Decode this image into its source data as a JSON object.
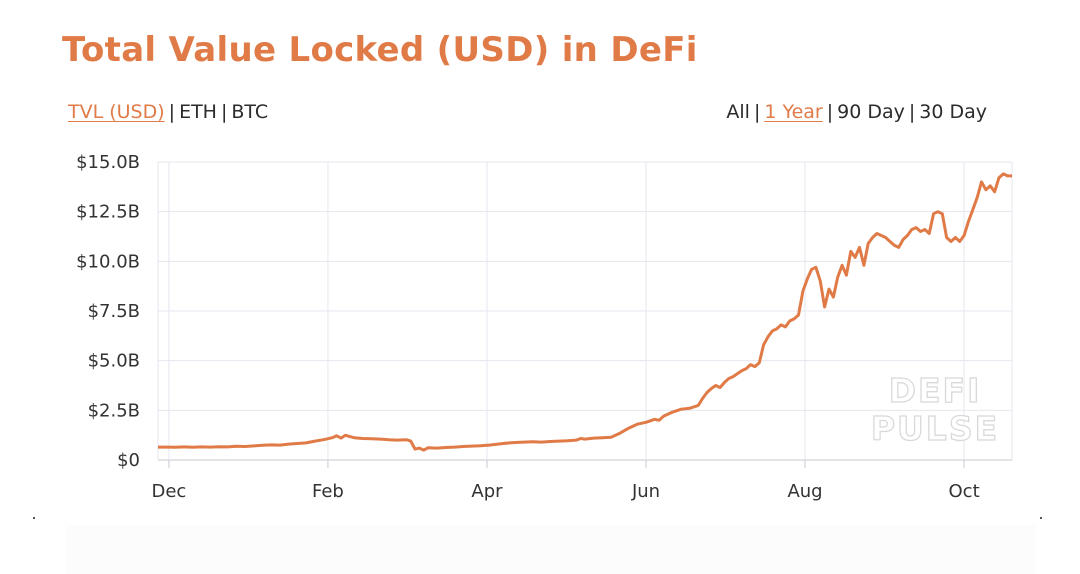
{
  "header": {
    "title": "Total Value Locked (USD) in DeFi"
  },
  "unit_toggle": {
    "options": [
      "TVL (USD)",
      "ETH",
      "BTC"
    ],
    "active": "TVL (USD)",
    "separator": "|"
  },
  "range_toggle": {
    "options": [
      "All",
      "1 Year",
      "90 Day",
      "30 Day"
    ],
    "active": "1 Year",
    "separator": "|"
  },
  "watermark": {
    "line1": "DEFI",
    "line2": "PULSE"
  },
  "colors": {
    "accent": "#e07b47",
    "line": "#e07b47",
    "grid": "#e6e6ef",
    "text": "#2b2b2b"
  },
  "chart_data": {
    "type": "line",
    "title": "Total Value Locked (USD) in DeFi",
    "xlabel": "",
    "ylabel": "",
    "x_tick_labels": [
      "Dec",
      "Feb",
      "Apr",
      "Jun",
      "Aug",
      "Oct"
    ],
    "y_tick_labels": [
      "$0",
      "$2.5B",
      "$5.0B",
      "$7.5B",
      "$10.0B",
      "$12.5B",
      "$15.0B"
    ],
    "ylim": [
      0,
      15
    ],
    "y_unit": "billions USD",
    "grid": true,
    "legend": "none",
    "series": [
      {
        "values": [
          [
            0,
            0.65
          ],
          [
            4,
            0.65
          ],
          [
            8,
            0.64
          ],
          [
            12,
            0.66
          ],
          [
            16,
            0.64
          ],
          [
            20,
            0.66
          ],
          [
            24,
            0.65
          ],
          [
            28,
            0.67
          ],
          [
            32,
            0.66
          ],
          [
            36,
            0.69
          ],
          [
            40,
            0.68
          ],
          [
            44,
            0.71
          ],
          [
            48,
            0.74
          ],
          [
            52,
            0.76
          ],
          [
            56,
            0.75
          ],
          [
            60,
            0.8
          ],
          [
            64,
            0.83
          ],
          [
            68,
            0.86
          ],
          [
            72,
            0.95
          ],
          [
            76,
            1.02
          ],
          [
            80,
            1.12
          ],
          [
            82,
            1.22
          ],
          [
            84,
            1.1
          ],
          [
            86,
            1.25
          ],
          [
            88,
            1.18
          ],
          [
            90,
            1.12
          ],
          [
            94,
            1.08
          ],
          [
            98,
            1.07
          ],
          [
            102,
            1.05
          ],
          [
            106,
            1.02
          ],
          [
            110,
            1.0
          ],
          [
            114,
            1.02
          ],
          [
            116,
            0.95
          ],
          [
            118,
            0.55
          ],
          [
            120,
            0.6
          ],
          [
            122,
            0.5
          ],
          [
            124,
            0.62
          ],
          [
            128,
            0.6
          ],
          [
            132,
            0.63
          ],
          [
            136,
            0.65
          ],
          [
            140,
            0.68
          ],
          [
            144,
            0.7
          ],
          [
            148,
            0.72
          ],
          [
            152,
            0.75
          ],
          [
            156,
            0.8
          ],
          [
            160,
            0.85
          ],
          [
            164,
            0.88
          ],
          [
            168,
            0.9
          ],
          [
            172,
            0.92
          ],
          [
            176,
            0.9
          ],
          [
            180,
            0.93
          ],
          [
            184,
            0.95
          ],
          [
            188,
            0.97
          ],
          [
            192,
            1.0
          ],
          [
            194,
            1.08
          ],
          [
            196,
            1.05
          ],
          [
            200,
            1.1
          ],
          [
            204,
            1.12
          ],
          [
            208,
            1.15
          ],
          [
            212,
            1.35
          ],
          [
            216,
            1.6
          ],
          [
            220,
            1.8
          ],
          [
            224,
            1.9
          ],
          [
            228,
            2.05
          ],
          [
            230,
            2.0
          ],
          [
            232,
            2.2
          ],
          [
            236,
            2.4
          ],
          [
            240,
            2.55
          ],
          [
            244,
            2.6
          ],
          [
            248,
            2.75
          ],
          [
            250,
            3.1
          ],
          [
            252,
            3.4
          ],
          [
            254,
            3.6
          ],
          [
            256,
            3.75
          ],
          [
            258,
            3.65
          ],
          [
            260,
            3.9
          ],
          [
            262,
            4.1
          ],
          [
            264,
            4.2
          ],
          [
            266,
            4.35
          ],
          [
            268,
            4.5
          ],
          [
            270,
            4.6
          ],
          [
            272,
            4.8
          ],
          [
            274,
            4.7
          ],
          [
            276,
            4.9
          ],
          [
            278,
            5.8
          ],
          [
            280,
            6.2
          ],
          [
            282,
            6.5
          ],
          [
            284,
            6.6
          ],
          [
            286,
            6.8
          ],
          [
            288,
            6.7
          ],
          [
            290,
            7.0
          ],
          [
            292,
            7.1
          ],
          [
            294,
            7.3
          ],
          [
            296,
            8.5
          ],
          [
            298,
            9.1
          ],
          [
            300,
            9.6
          ],
          [
            302,
            9.7
          ],
          [
            304,
            9.0
          ],
          [
            306,
            7.7
          ],
          [
            308,
            8.6
          ],
          [
            310,
            8.2
          ],
          [
            312,
            9.2
          ],
          [
            314,
            9.8
          ],
          [
            316,
            9.3
          ],
          [
            318,
            10.5
          ],
          [
            320,
            10.2
          ],
          [
            322,
            10.7
          ],
          [
            324,
            9.8
          ],
          [
            326,
            10.9
          ],
          [
            328,
            11.2
          ],
          [
            330,
            11.4
          ],
          [
            332,
            11.3
          ],
          [
            334,
            11.2
          ],
          [
            336,
            11.0
          ],
          [
            338,
            10.8
          ],
          [
            340,
            10.7
          ],
          [
            342,
            11.1
          ],
          [
            344,
            11.3
          ],
          [
            346,
            11.6
          ],
          [
            348,
            11.7
          ],
          [
            350,
            11.5
          ],
          [
            352,
            11.6
          ],
          [
            354,
            11.4
          ],
          [
            356,
            12.4
          ],
          [
            358,
            12.5
          ],
          [
            360,
            12.4
          ],
          [
            362,
            11.2
          ],
          [
            364,
            11.0
          ],
          [
            366,
            11.2
          ],
          [
            368,
            11.0
          ],
          [
            370,
            11.3
          ],
          [
            372,
            12.0
          ],
          [
            374,
            12.6
          ],
          [
            376,
            13.2
          ],
          [
            378,
            14.0
          ],
          [
            380,
            13.6
          ],
          [
            382,
            13.8
          ],
          [
            384,
            13.5
          ],
          [
            386,
            14.2
          ],
          [
            388,
            14.4
          ],
          [
            390,
            14.3
          ],
          [
            392,
            14.3
          ]
        ]
      }
    ]
  }
}
